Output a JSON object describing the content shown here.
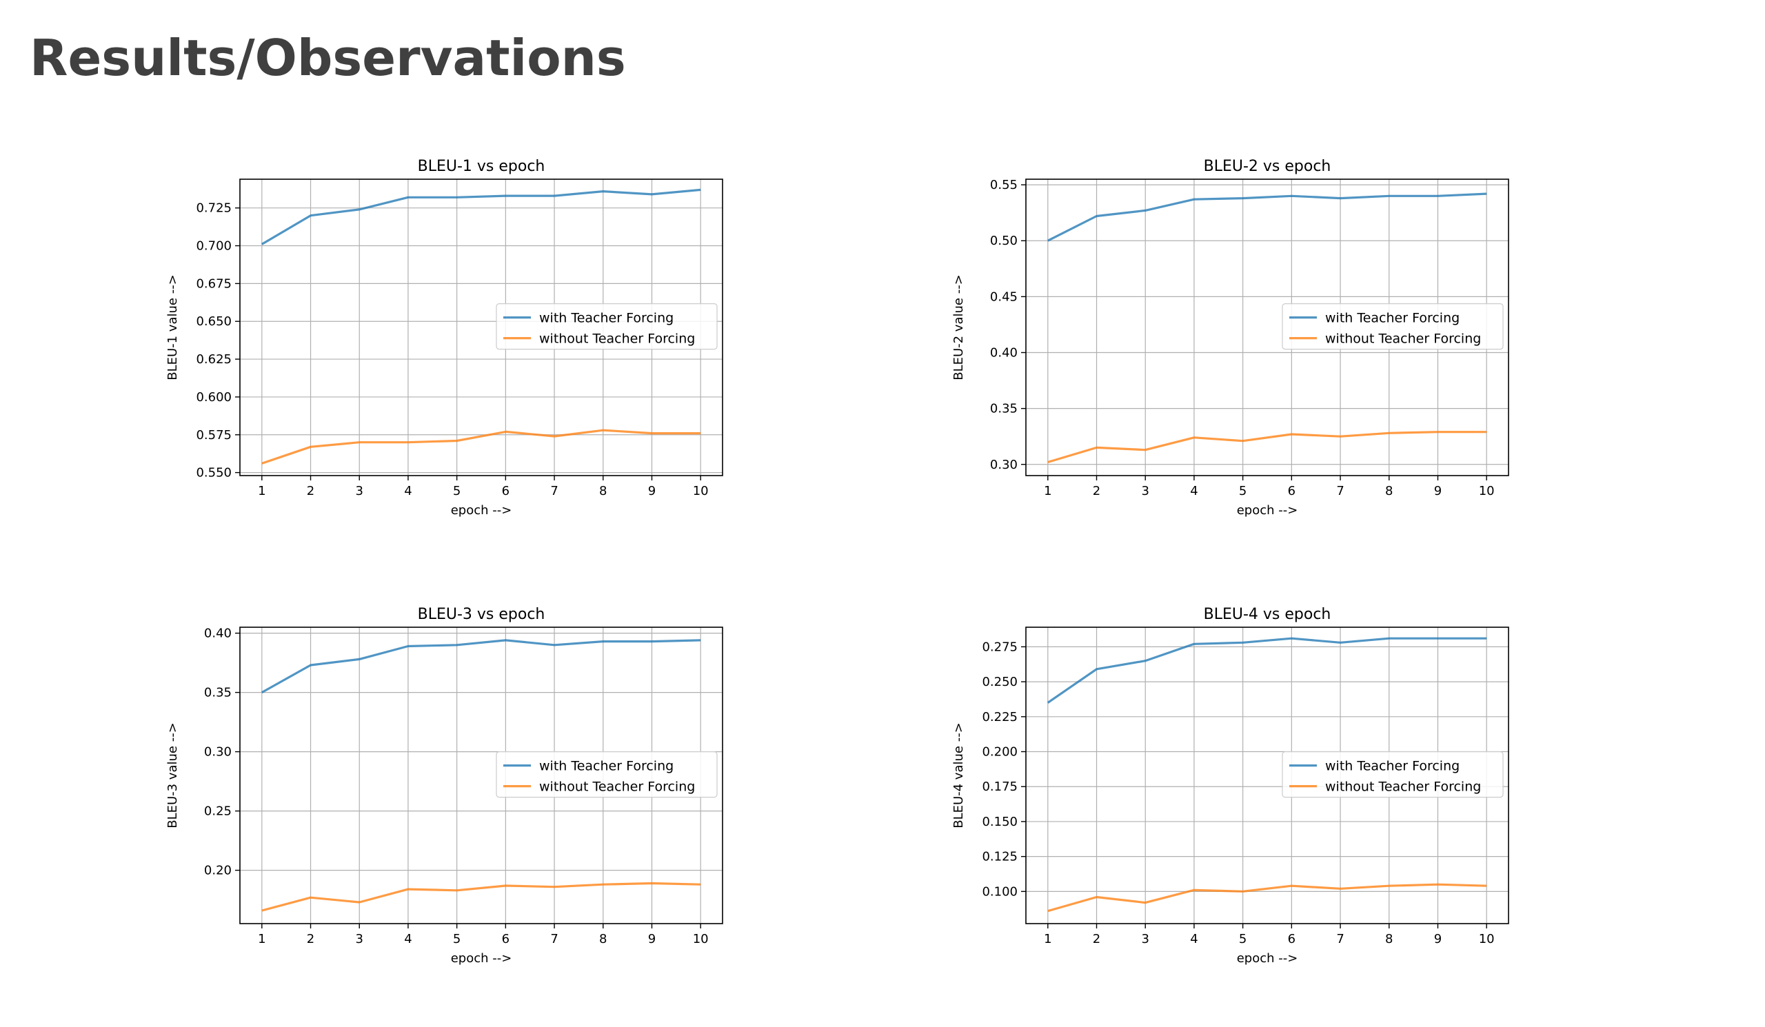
{
  "slide": {
    "title": "Results/Observations"
  },
  "chart_data": [
    {
      "type": "line",
      "title": "BLEU-1 vs epoch",
      "xlabel": "epoch -->",
      "ylabel": "BLEU-1 value -->",
      "x": [
        1,
        2,
        3,
        4,
        5,
        6,
        7,
        8,
        9,
        10
      ],
      "xlim": [
        0.55,
        10.45
      ],
      "ylim": [
        0.548,
        0.744
      ],
      "yticks": [
        0.55,
        0.575,
        0.6,
        0.625,
        0.65,
        0.675,
        0.7,
        0.725
      ],
      "ytick_labels": [
        "0.550",
        "0.575",
        "0.600",
        "0.625",
        "0.650",
        "0.675",
        "0.700",
        "0.725"
      ],
      "grid": true,
      "legend_position": "center-right",
      "series": [
        {
          "name": "with Teacher Forcing",
          "color": "#1f77b4",
          "values": [
            0.701,
            0.72,
            0.724,
            0.732,
            0.732,
            0.733,
            0.733,
            0.736,
            0.734,
            0.737
          ]
        },
        {
          "name": "without Teacher Forcing",
          "color": "#ff7f0e",
          "values": [
            0.556,
            0.567,
            0.57,
            0.57,
            0.571,
            0.577,
            0.574,
            0.578,
            0.576,
            0.576
          ]
        }
      ]
    },
    {
      "type": "line",
      "title": "BLEU-2 vs epoch",
      "xlabel": "epoch -->",
      "ylabel": "BLEU-2 value -->",
      "x": [
        1,
        2,
        3,
        4,
        5,
        6,
        7,
        8,
        9,
        10
      ],
      "xlim": [
        0.55,
        10.45
      ],
      "ylim": [
        0.29,
        0.555
      ],
      "yticks": [
        0.3,
        0.35,
        0.4,
        0.45,
        0.5,
        0.55
      ],
      "ytick_labels": [
        "0.30",
        "0.35",
        "0.40",
        "0.45",
        "0.50",
        "0.55"
      ],
      "grid": true,
      "legend_position": "center-right",
      "series": [
        {
          "name": "with Teacher Forcing",
          "color": "#1f77b4",
          "values": [
            0.5,
            0.522,
            0.527,
            0.537,
            0.538,
            0.54,
            0.538,
            0.54,
            0.54,
            0.542
          ]
        },
        {
          "name": "without Teacher Forcing",
          "color": "#ff7f0e",
          "values": [
            0.302,
            0.315,
            0.313,
            0.324,
            0.321,
            0.327,
            0.325,
            0.328,
            0.329,
            0.329
          ]
        }
      ]
    },
    {
      "type": "line",
      "title": "BLEU-3 vs epoch",
      "xlabel": "epoch -->",
      "ylabel": "BLEU-3 value -->",
      "x": [
        1,
        2,
        3,
        4,
        5,
        6,
        7,
        8,
        9,
        10
      ],
      "xlim": [
        0.55,
        10.45
      ],
      "ylim": [
        0.155,
        0.405
      ],
      "yticks": [
        0.2,
        0.25,
        0.3,
        0.35,
        0.4
      ],
      "ytick_labels": [
        "0.20",
        "0.25",
        "0.30",
        "0.35",
        "0.40"
      ],
      "grid": true,
      "legend_position": "center-right",
      "series": [
        {
          "name": "with Teacher Forcing",
          "color": "#1f77b4",
          "values": [
            0.35,
            0.373,
            0.378,
            0.389,
            0.39,
            0.394,
            0.39,
            0.393,
            0.393,
            0.394
          ]
        },
        {
          "name": "without Teacher Forcing",
          "color": "#ff7f0e",
          "values": [
            0.166,
            0.177,
            0.173,
            0.184,
            0.183,
            0.187,
            0.186,
            0.188,
            0.189,
            0.188
          ]
        }
      ]
    },
    {
      "type": "line",
      "title": "BLEU-4 vs epoch",
      "xlabel": "epoch -->",
      "ylabel": "BLEU-4 value -->",
      "x": [
        1,
        2,
        3,
        4,
        5,
        6,
        7,
        8,
        9,
        10
      ],
      "xlim": [
        0.55,
        10.45
      ],
      "ylim": [
        0.077,
        0.289
      ],
      "yticks": [
        0.1,
        0.125,
        0.15,
        0.175,
        0.2,
        0.225,
        0.25,
        0.275
      ],
      "ytick_labels": [
        "0.100",
        "0.125",
        "0.150",
        "0.175",
        "0.200",
        "0.225",
        "0.250",
        "0.275"
      ],
      "grid": true,
      "legend_position": "center-right",
      "series": [
        {
          "name": "with Teacher Forcing",
          "color": "#1f77b4",
          "values": [
            0.235,
            0.259,
            0.265,
            0.277,
            0.278,
            0.281,
            0.278,
            0.281,
            0.281,
            0.281
          ]
        },
        {
          "name": "without Teacher Forcing",
          "color": "#ff7f0e",
          "values": [
            0.086,
            0.096,
            0.092,
            0.101,
            0.1,
            0.104,
            0.102,
            0.104,
            0.105,
            0.104
          ]
        }
      ]
    }
  ]
}
